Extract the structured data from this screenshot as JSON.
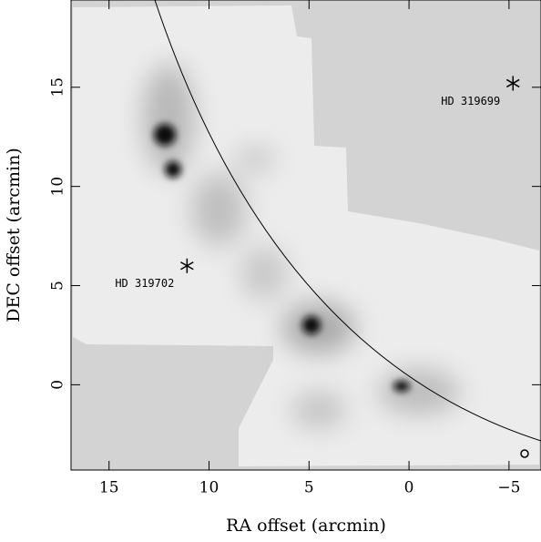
{
  "chart_data": {
    "type": "image",
    "x_label": "RA offset (arcmin)",
    "y_label": "DEC offset (arcmin)",
    "xlim": [
      16.9,
      -6.6
    ],
    "ylim": [
      -4.3,
      19.4
    ],
    "xticks": [
      15,
      10,
      5,
      0,
      {
        "value": -5,
        "label": "−5"
      }
    ],
    "yticks": [
      0,
      5,
      10,
      15
    ],
    "points": [
      {
        "label": "HD 319699",
        "x": -5.2,
        "y": 15.2
      },
      {
        "label": "HD 319702",
        "x": 11.1,
        "y": 6.0
      }
    ]
  }
}
